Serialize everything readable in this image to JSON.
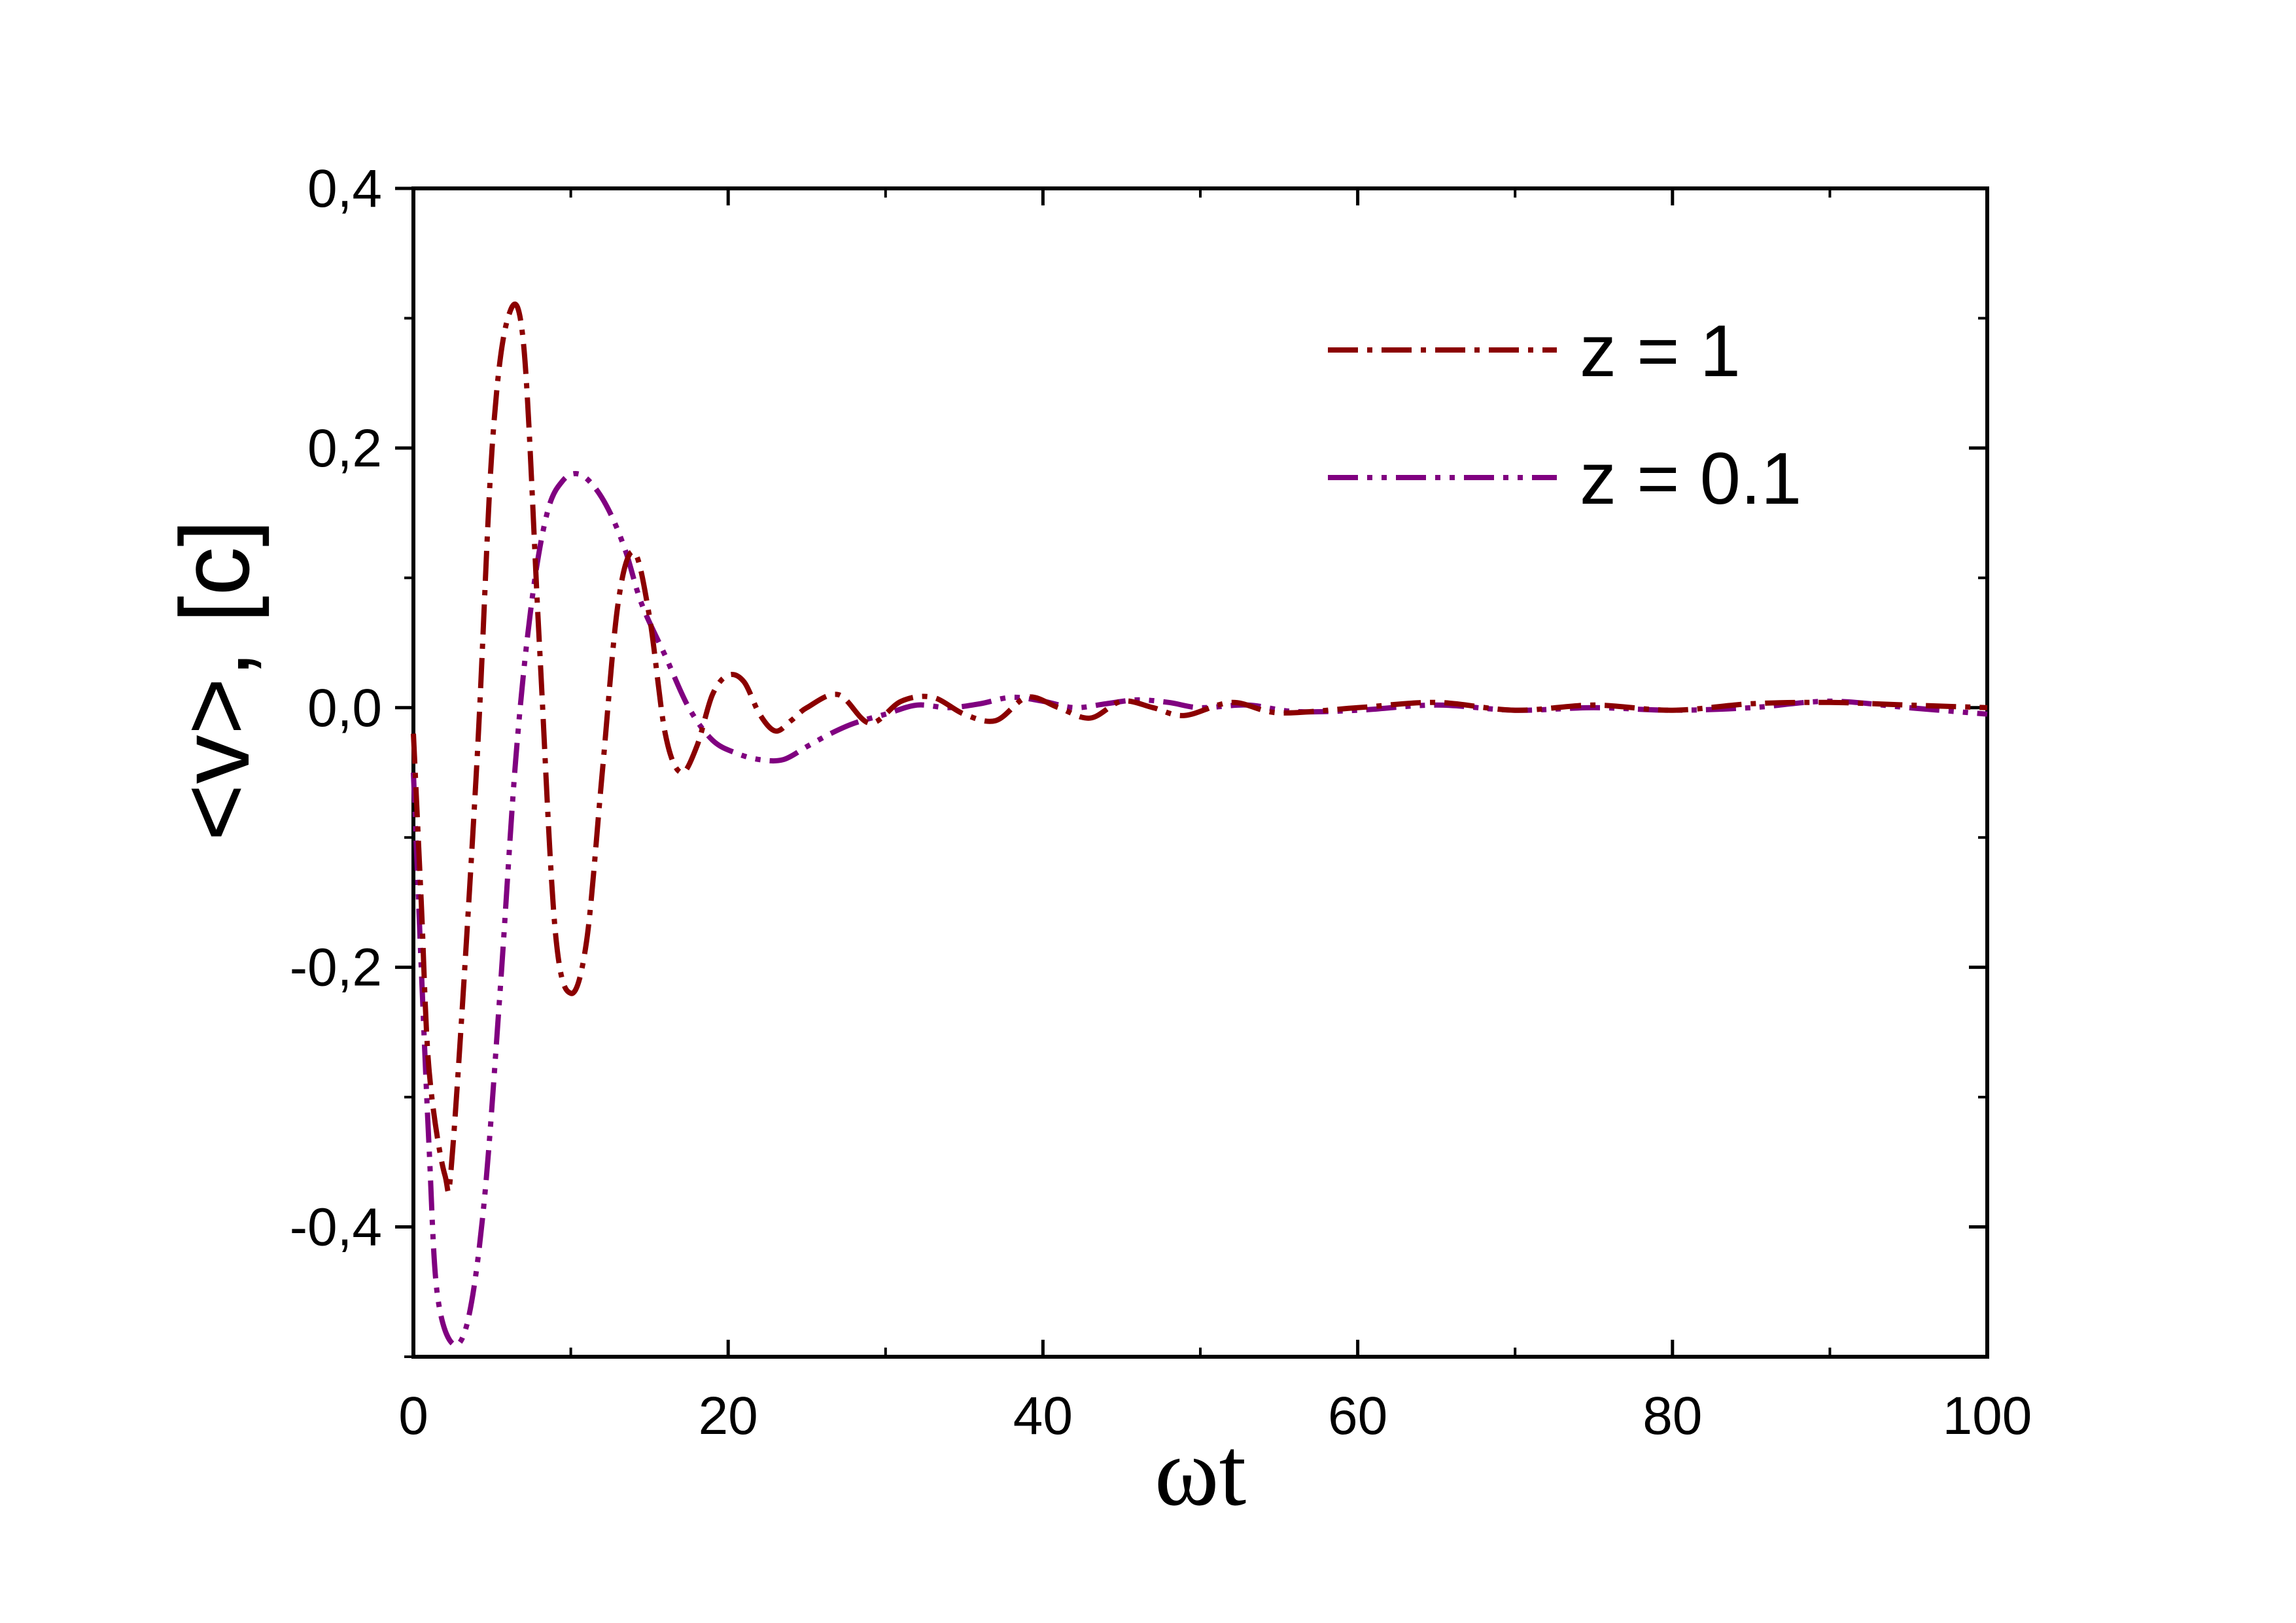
{
  "chart_data": {
    "type": "line",
    "title": "",
    "xlabel": "ωt",
    "ylabel": "<v>, [c]",
    "xlim": [
      0,
      100
    ],
    "ylim": [
      -0.5,
      0.4
    ],
    "x_ticks": [
      0,
      20,
      40,
      60,
      80,
      100
    ],
    "x_tick_labels": [
      "0",
      "20",
      "40",
      "60",
      "80",
      "100"
    ],
    "y_ticks": [
      0.4,
      0.2,
      0.0,
      -0.2,
      -0.4
    ],
    "y_tick_labels": [
      "0,4",
      "0,2",
      "0,0",
      "-0,2",
      "-0,4"
    ],
    "grid": false,
    "legend_position": "top-right",
    "series": [
      {
        "name": "z = 1",
        "color": "#8b0000",
        "dash": "dash-dot",
        "x": [
          0,
          0.5,
          1,
          2,
          2.5,
          4,
          5,
          6,
          7,
          8,
          9,
          10,
          11,
          12,
          13,
          14,
          15,
          16,
          17,
          18,
          19,
          20,
          21,
          22,
          23,
          24,
          25,
          27,
          29,
          31,
          33,
          35,
          37,
          39,
          41,
          43,
          45,
          47,
          49,
          52,
          55,
          60,
          65,
          70,
          75,
          80,
          85,
          90,
          95,
          100
        ],
        "y": [
          -0.02,
          -0.15,
          -0.28,
          -0.36,
          -0.34,
          -0.05,
          0.2,
          0.3,
          0.28,
          0.05,
          -0.17,
          -0.22,
          -0.18,
          -0.05,
          0.08,
          0.12,
          0.07,
          -0.02,
          -0.05,
          -0.03,
          0.01,
          0.025,
          0.02,
          -0.005,
          -0.018,
          -0.01,
          0.0,
          0.01,
          -0.012,
          0.005,
          0.008,
          -0.005,
          -0.01,
          0.008,
          0.0,
          -0.008,
          0.005,
          0.0,
          -0.006,
          0.004,
          -0.004,
          0.0,
          0.004,
          -0.002,
          0.002,
          -0.002,
          0.003,
          0.004,
          0.002,
          0.0
        ]
      },
      {
        "name": "z = 0.1",
        "color": "#800080",
        "dash": "dash-dot-dot",
        "x": [
          0,
          0.5,
          1,
          1.5,
          2.5,
          3.5,
          4.5,
          5.5,
          6.5,
          7.5,
          8.5,
          9.5,
          10.5,
          11.5,
          12.5,
          13.5,
          14.5,
          16,
          17.5,
          19,
          20.5,
          22,
          23.5,
          25,
          26.5,
          28,
          30,
          32,
          34,
          36,
          38,
          40,
          42,
          44,
          46,
          48,
          50,
          53,
          56,
          60,
          65,
          70,
          75,
          80,
          85,
          90,
          95,
          100
        ],
        "y": [
          -0.05,
          -0.2,
          -0.34,
          -0.45,
          -0.49,
          -0.47,
          -0.38,
          -0.22,
          -0.04,
          0.08,
          0.15,
          0.175,
          0.18,
          0.17,
          0.15,
          0.12,
          0.08,
          0.04,
          0.0,
          -0.025,
          -0.035,
          -0.04,
          -0.04,
          -0.03,
          -0.02,
          -0.012,
          -0.005,
          0.002,
          0.0,
          0.003,
          0.008,
          0.005,
          0.0,
          0.003,
          0.006,
          0.004,
          0.0,
          0.002,
          -0.003,
          -0.002,
          0.002,
          -0.002,
          0.0,
          -0.002,
          0.0,
          0.005,
          0.0,
          -0.005
        ]
      }
    ]
  }
}
